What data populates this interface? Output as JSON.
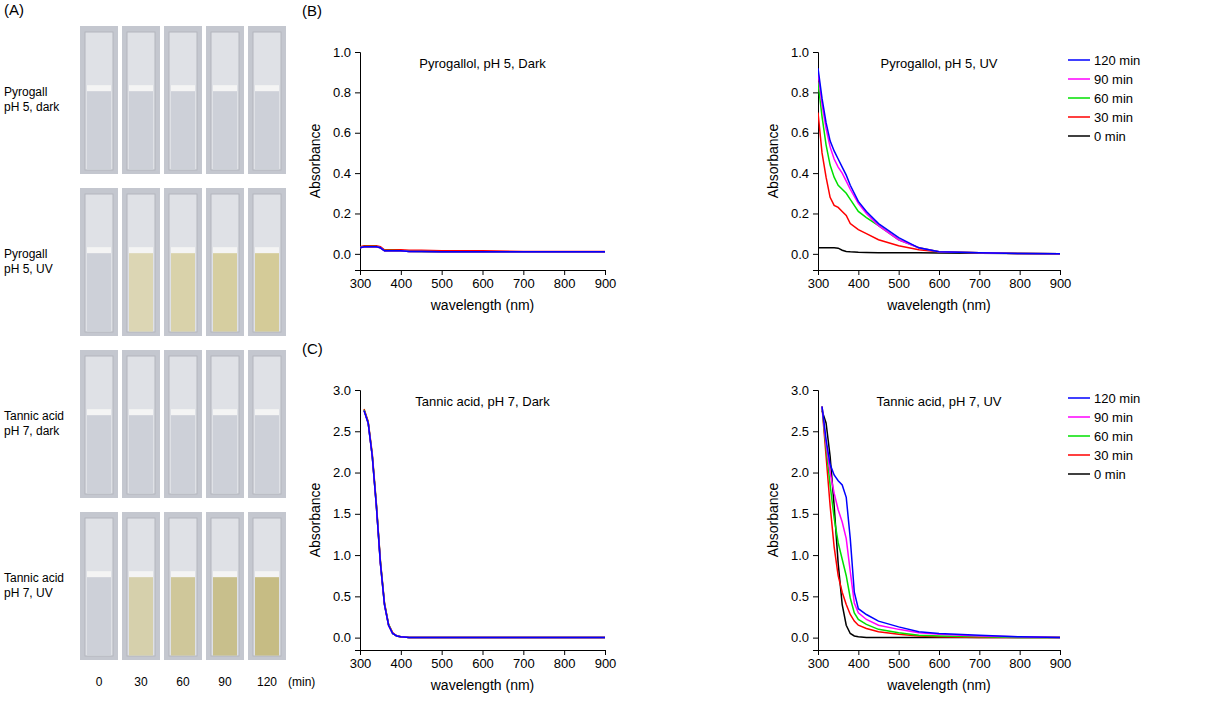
{
  "panel_labels": [
    "(A)",
    "(B)",
    "(C)"
  ],
  "photos": {
    "rows": [
      {
        "label": [
          "Pyrogall",
          "pH 5, dark"
        ],
        "colors": [
          "#cdd0d8",
          "#cdd0d8",
          "#cdd0d8",
          "#cdd0d8",
          "#cdd0d8"
        ]
      },
      {
        "label": [
          "Pyrogall",
          "pH 5, UV"
        ],
        "colors": [
          "#cdd0d8",
          "#dcd6b4",
          "#d9d2aa",
          "#d6cea0",
          "#d4cb98"
        ]
      },
      {
        "label": [
          "Tannic acid",
          "pH 7, dark"
        ],
        "colors": [
          "#cdd0d8",
          "#cdd0d8",
          "#cdd0d8",
          "#cdd0d8",
          "#cdd0d8"
        ]
      },
      {
        "label": [
          "Tannic acid",
          "pH 7, UV"
        ],
        "colors": [
          "#cdd0d8",
          "#d6d0ac",
          "#cfc79a",
          "#c8bf8c",
          "#c6bc84"
        ]
      }
    ],
    "times": [
      0,
      30,
      60,
      90,
      120
    ],
    "time_unit": "(min)"
  },
  "chart_data": [
    {
      "type": "line",
      "title": "Pyrogallol, pH 5, Dark",
      "xlabel": "wavelength (nm)",
      "ylabel": "Absorbance",
      "x": [
        300,
        310,
        320,
        330,
        340,
        350,
        360,
        370,
        380,
        400,
        420,
        450,
        500,
        550,
        600,
        700,
        800,
        900
      ],
      "xlim": [
        300,
        900
      ],
      "xticks": [
        300,
        400,
        500,
        600,
        700,
        800,
        900
      ],
      "ylim": [
        -0.08,
        1.0
      ],
      "yticks": [
        {
          "value": 0,
          "label": "0.0"
        },
        0.2,
        0.4,
        0.6,
        0.8,
        {
          "value": 1,
          "label": "1.0"
        }
      ],
      "series": [
        {
          "color": "#0000ff",
          "values": [
            0.03,
            0.035,
            0.035,
            0.035,
            0.035,
            0.03,
            0.015,
            0.015,
            0.015,
            0.015,
            0.012,
            0.012,
            0.01,
            0.01,
            0.01,
            0.01,
            0.01,
            0.01
          ]
        },
        {
          "color": "#ff00ff",
          "values": [
            0.03,
            0.035,
            0.035,
            0.035,
            0.035,
            0.03,
            0.015,
            0.015,
            0.015,
            0.015,
            0.012,
            0.012,
            0.01,
            0.01,
            0.01,
            0.01,
            0.01,
            0.01
          ]
        },
        {
          "color": "#00e000",
          "values": [
            0.032,
            0.036,
            0.036,
            0.036,
            0.036,
            0.031,
            0.016,
            0.016,
            0.016,
            0.015,
            0.013,
            0.012,
            0.011,
            0.011,
            0.01,
            0.01,
            0.01,
            0.01
          ]
        },
        {
          "color": "#ff0000",
          "values": [
            0.035,
            0.04,
            0.04,
            0.04,
            0.04,
            0.035,
            0.02,
            0.02,
            0.02,
            0.02,
            0.018,
            0.018,
            0.015,
            0.015,
            0.015,
            0.012,
            0.012,
            0.012
          ]
        },
        {
          "color": "#000000",
          "values": [
            0.03,
            0.035,
            0.035,
            0.035,
            0.035,
            0.03,
            0.015,
            0.015,
            0.015,
            0.015,
            0.012,
            0.012,
            0.01,
            0.01,
            0.01,
            0.01,
            0.01,
            0.01
          ]
        }
      ]
    },
    {
      "type": "line",
      "title": "Pyrogallol, pH 5, UV",
      "xlabel": "wavelength (nm)",
      "ylabel": "Absorbance",
      "legend": "right",
      "x": [
        300,
        310,
        320,
        330,
        340,
        350,
        360,
        370,
        380,
        400,
        420,
        450,
        500,
        550,
        600,
        700,
        800,
        900
      ],
      "xlim": [
        300,
        900
      ],
      "xticks": [
        300,
        400,
        500,
        600,
        700,
        800,
        900
      ],
      "ylim": [
        -0.08,
        1.0
      ],
      "yticks": [
        {
          "value": 0,
          "label": "0.0"
        },
        0.2,
        0.4,
        0.6,
        0.8,
        {
          "value": 1,
          "label": "1.0"
        }
      ],
      "series": [
        {
          "name": "120 min",
          "color": "#0000ff",
          "values": [
            0.92,
            0.77,
            0.65,
            0.56,
            0.51,
            0.47,
            0.43,
            0.39,
            0.34,
            0.26,
            0.21,
            0.15,
            0.08,
            0.03,
            0.01,
            0.005,
            0.002,
            0
          ]
        },
        {
          "name": "90 min",
          "color": "#ff00ff",
          "values": [
            0.9,
            0.74,
            0.62,
            0.53,
            0.47,
            0.43,
            0.4,
            0.36,
            0.32,
            0.25,
            0.2,
            0.14,
            0.07,
            0.03,
            0.01,
            0.005,
            0.002,
            0
          ]
        },
        {
          "name": "60 min",
          "color": "#00e000",
          "values": [
            0.85,
            0.68,
            0.54,
            0.44,
            0.38,
            0.34,
            0.32,
            0.3,
            0.27,
            0.21,
            0.18,
            0.14,
            0.07,
            0.03,
            0.01,
            0.005,
            0.002,
            0
          ]
        },
        {
          "name": "30 min",
          "color": "#ff0000",
          "values": [
            0.7,
            0.5,
            0.38,
            0.28,
            0.24,
            0.23,
            0.21,
            0.19,
            0.15,
            0.12,
            0.1,
            0.07,
            0.04,
            0.02,
            0.01,
            0.005,
            0.002,
            0
          ]
        },
        {
          "name": "0 min",
          "color": "#000000",
          "values": [
            0.03,
            0.03,
            0.03,
            0.03,
            0.03,
            0.028,
            0.018,
            0.012,
            0.01,
            0.008,
            0.007,
            0.006,
            0.005,
            0.005,
            0.004,
            0.003,
            0.002,
            0.001
          ]
        }
      ]
    },
    {
      "type": "line",
      "title": "Tannic acid, pH 7, Dark",
      "xlabel": "wavelength (nm)",
      "ylabel": "Absorbance",
      "x": [
        310,
        320,
        330,
        340,
        350,
        360,
        370,
        380,
        390,
        400,
        420,
        450,
        500,
        550,
        600,
        700,
        800,
        900
      ],
      "xlim": [
        300,
        900
      ],
      "xticks": [
        300,
        400,
        500,
        600,
        700,
        800,
        900
      ],
      "ylim": [
        -0.15,
        3.0
      ],
      "yticks": [
        {
          "value": 0,
          "label": "0.0"
        },
        0.5,
        {
          "value": 1,
          "label": "1.0"
        },
        1.5,
        {
          "value": 2,
          "label": "2.0"
        },
        2.5,
        {
          "value": 3,
          "label": "3.0"
        }
      ],
      "series": [
        {
          "color": "#0000ff",
          "values": [
            2.75,
            2.6,
            2.2,
            1.6,
            0.9,
            0.4,
            0.15,
            0.05,
            0.02,
            0.01,
            0,
            0,
            0,
            0,
            0,
            0,
            0,
            0
          ]
        },
        {
          "color": "#ff00ff",
          "values": [
            2.75,
            2.6,
            2.2,
            1.6,
            0.9,
            0.4,
            0.15,
            0.05,
            0.02,
            0.01,
            0,
            0,
            0,
            0,
            0,
            0,
            0,
            0
          ]
        },
        {
          "color": "#00e000",
          "values": [
            2.76,
            2.61,
            2.21,
            1.62,
            0.92,
            0.41,
            0.16,
            0.05,
            0.02,
            0.01,
            0,
            0,
            0,
            0,
            0,
            0,
            0,
            0
          ]
        },
        {
          "color": "#ff0000",
          "values": [
            2.77,
            2.62,
            2.23,
            1.63,
            0.93,
            0.42,
            0.16,
            0.06,
            0.02,
            0.01,
            0,
            0,
            0,
            0,
            0,
            0,
            0,
            0
          ]
        },
        {
          "color": "#000000",
          "values": [
            2.75,
            2.6,
            2.2,
            1.6,
            0.9,
            0.4,
            0.15,
            0.05,
            0.02,
            0.01,
            0,
            0,
            0,
            0,
            0,
            0,
            0,
            0
          ]
        }
      ]
    },
    {
      "type": "line",
      "title": "Tannic acid, pH 7, UV",
      "xlabel": "wavelength (nm)",
      "ylabel": "Absorbance",
      "legend": "right",
      "x": [
        310,
        320,
        330,
        340,
        350,
        360,
        370,
        380,
        390,
        400,
        420,
        450,
        500,
        550,
        600,
        700,
        800,
        900
      ],
      "xlim": [
        300,
        900
      ],
      "xticks": [
        300,
        400,
        500,
        600,
        700,
        800,
        900
      ],
      "ylim": [
        -0.15,
        3.0
      ],
      "yticks": [
        {
          "value": 0,
          "label": "0.0"
        },
        0.5,
        {
          "value": 1,
          "label": "1.0"
        },
        1.5,
        {
          "value": 2,
          "label": "2.0"
        },
        2.5,
        {
          "value": 3,
          "label": "3.0"
        }
      ],
      "series": [
        {
          "name": "120 min",
          "color": "#0000ff",
          "values": [
            2.8,
            2.4,
            2.1,
            1.97,
            1.9,
            1.85,
            1.7,
            1.2,
            0.55,
            0.35,
            0.28,
            0.2,
            0.13,
            0.07,
            0.05,
            0.03,
            0.01,
            0
          ]
        },
        {
          "name": "90 min",
          "color": "#ff00ff",
          "values": [
            2.8,
            2.35,
            2.0,
            1.75,
            1.55,
            1.4,
            1.2,
            0.8,
            0.42,
            0.3,
            0.22,
            0.15,
            0.1,
            0.06,
            0.04,
            0.02,
            0.01,
            0
          ]
        },
        {
          "name": "60 min",
          "color": "#00e000",
          "values": [
            2.8,
            2.3,
            1.85,
            1.45,
            1.15,
            0.95,
            0.75,
            0.48,
            0.3,
            0.22,
            0.16,
            0.1,
            0.06,
            0.03,
            0.02,
            0.01,
            0,
            0
          ]
        },
        {
          "name": "30 min",
          "color": "#ff0000",
          "values": [
            2.8,
            2.2,
            1.6,
            1.1,
            0.75,
            0.55,
            0.4,
            0.28,
            0.2,
            0.15,
            0.11,
            0.07,
            0.04,
            0.02,
            0.01,
            0,
            0,
            0
          ]
        },
        {
          "name": "0 min",
          "color": "#000000",
          "values": [
            2.75,
            2.6,
            2.2,
            1.6,
            0.9,
            0.4,
            0.15,
            0.05,
            0.02,
            0.01,
            0,
            0,
            0,
            0,
            0,
            0,
            0,
            0
          ]
        }
      ]
    }
  ]
}
